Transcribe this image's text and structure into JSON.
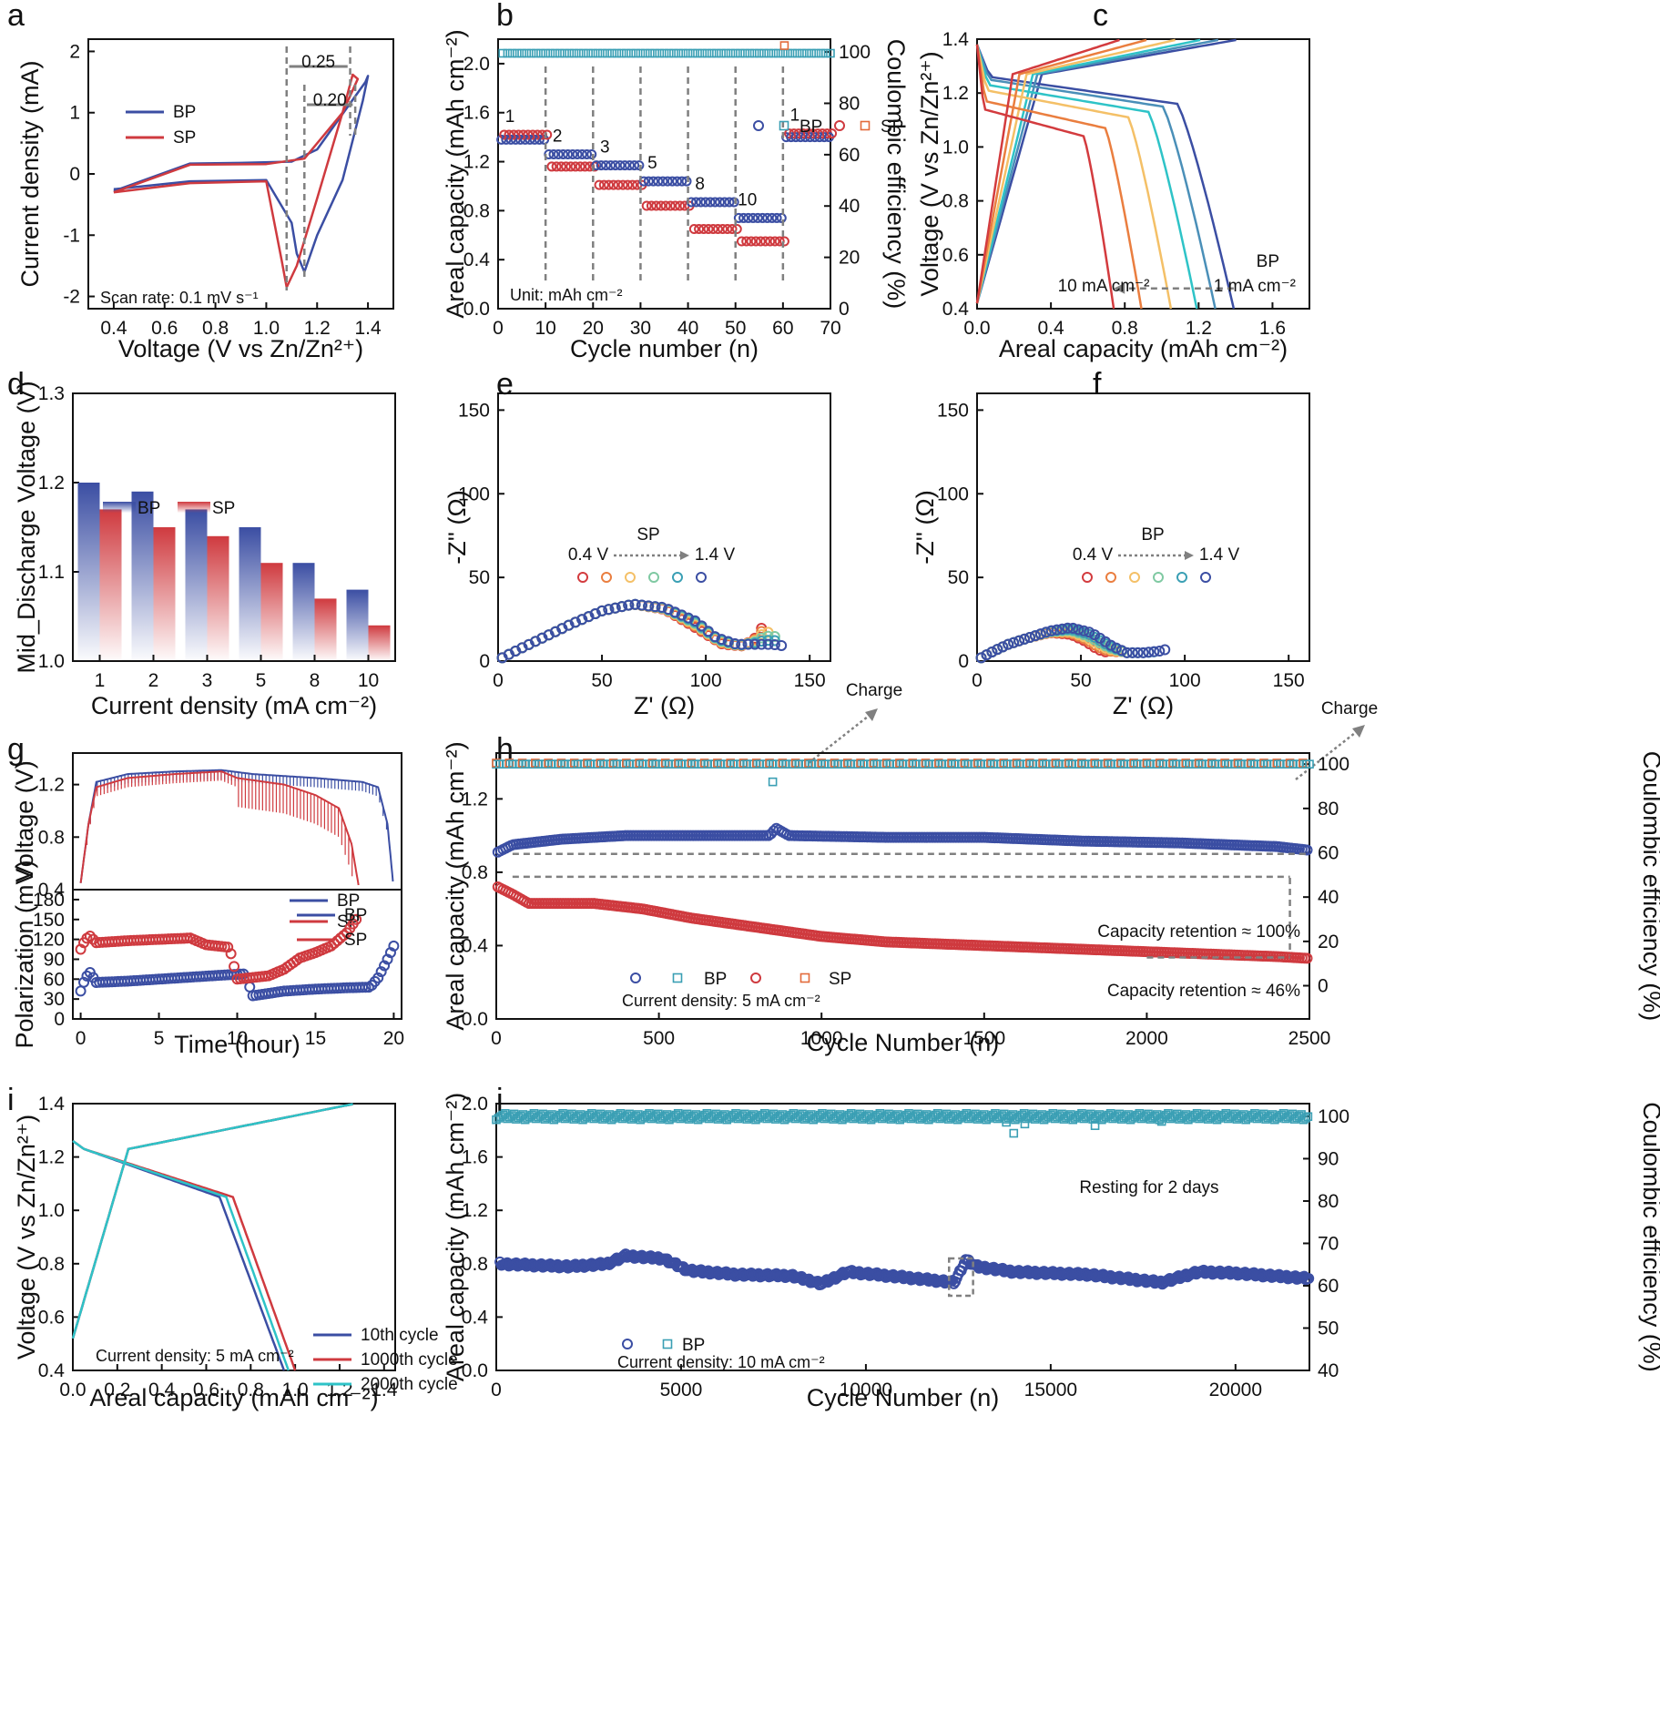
{
  "figure": {
    "colors": {
      "BP": "#3b4ea3",
      "SP": "#cf3a3f",
      "BP_CE": "#3a9fb4",
      "SP_CE": "#e36a3a",
      "guide": "#808080"
    }
  },
  "chart_data": [
    {
      "id": "a",
      "panel": "a",
      "type": "line",
      "xlabel": "Voltage (V vs Zn/Zn²⁺)",
      "ylabel": "Current density (mA)",
      "xlim": [
        0.3,
        1.5
      ],
      "ylim": [
        -2.2,
        2.2
      ],
      "xticks": [
        0.4,
        0.6,
        0.8,
        1.0,
        1.2,
        1.4
      ],
      "yticks": [
        -2,
        -1,
        0,
        1,
        2
      ],
      "legend": [
        "BP",
        "SP"
      ],
      "legend_position": "top-left",
      "annotations": [
        "0.25",
        "0.20",
        "Scan rate: 0.1 mV s⁻¹"
      ],
      "series": [
        {
          "name": "BP",
          "x": [
            0.4,
            0.7,
            1.0,
            1.1,
            1.12,
            1.15,
            1.2,
            1.3,
            1.38,
            1.4,
            1.39,
            1.2,
            1.1,
            0.9,
            0.7,
            0.4
          ],
          "y": [
            -0.25,
            -0.12,
            -0.1,
            -0.8,
            -1.3,
            -1.6,
            -1.0,
            -0.1,
            1.2,
            1.6,
            1.5,
            0.4,
            0.2,
            0.18,
            0.17,
            -0.28
          ]
        },
        {
          "name": "SP",
          "x": [
            0.4,
            0.7,
            1.0,
            1.06,
            1.08,
            1.12,
            1.2,
            1.3,
            1.34,
            1.36,
            1.3,
            1.15,
            1.0,
            0.7,
            0.4
          ],
          "y": [
            -0.3,
            -0.15,
            -0.12,
            -1.4,
            -1.85,
            -1.5,
            -0.4,
            1.0,
            1.62,
            1.55,
            1.0,
            0.25,
            0.16,
            0.15,
            -0.3
          ]
        }
      ]
    },
    {
      "id": "b",
      "panel": "b",
      "type": "scatter",
      "xlabel": "Cycle number (n)",
      "ylabel": "Areal capacity (mAh cm⁻²)",
      "ylabel_right": "Coulombic efficiency (%)",
      "xlim": [
        0,
        70
      ],
      "ylim": [
        0,
        2.2
      ],
      "ylim_right": [
        0,
        105
      ],
      "xticks": [
        0,
        10,
        20,
        30,
        40,
        50,
        60,
        70
      ],
      "yticks": [
        0.0,
        0.4,
        0.8,
        1.2,
        1.6,
        2.0
      ],
      "yticks_right": [
        0,
        20,
        40,
        60,
        80,
        100
      ],
      "legend": [
        "BP",
        "SP"
      ],
      "legend_position": "top-right",
      "annotations": [
        "Unit: mAh cm⁻²"
      ],
      "segment_labels": [
        "1",
        "2",
        "3",
        "5",
        "8",
        "10",
        "1"
      ],
      "segments": [
        {
          "label": "1",
          "range": [
            1,
            10
          ],
          "BP": 1.38,
          "SP": 1.42
        },
        {
          "label": "2",
          "range": [
            11,
            20
          ],
          "BP": 1.26,
          "SP": 1.16
        },
        {
          "label": "3",
          "range": [
            21,
            30
          ],
          "BP": 1.17,
          "SP": 1.01
        },
        {
          "label": "5",
          "range": [
            31,
            40
          ],
          "BP": 1.04,
          "SP": 0.84
        },
        {
          "label": "8",
          "range": [
            41,
            50
          ],
          "BP": 0.87,
          "SP": 0.65
        },
        {
          "label": "10",
          "range": [
            51,
            60
          ],
          "BP": 0.74,
          "SP": 0.55
        },
        {
          "label": "1",
          "range": [
            61,
            70
          ],
          "BP": 1.4,
          "SP": 1.43
        }
      ],
      "coulombic_efficiency": {
        "BP": 99.5,
        "SP": 100.2
      }
    },
    {
      "id": "c",
      "panel": "c",
      "type": "line",
      "xlabel": "Areal capacity (mAh cm⁻²)",
      "ylabel": "Voltage (V vs Zn/Zn²⁺)",
      "xlim": [
        0,
        1.8
      ],
      "ylim": [
        0.4,
        1.4
      ],
      "xticks": [
        0.0,
        0.4,
        0.8,
        1.2,
        1.6
      ],
      "yticks": [
        0.4,
        0.6,
        0.8,
        1.0,
        1.2,
        1.4
      ],
      "annotations": [
        "BP",
        "1 mA cm⁻²",
        "10 mA cm⁻²"
      ],
      "curves": [
        {
          "current": 1,
          "capacity": 1.39,
          "plateau": 1.2,
          "color": "#3b4ea3"
        },
        {
          "current": 2,
          "capacity": 1.29,
          "plateau": 1.19,
          "color": "#4a8fb8"
        },
        {
          "current": 3,
          "capacity": 1.19,
          "plateau": 1.17,
          "color": "#2ec3c7"
        },
        {
          "current": 5,
          "capacity": 1.05,
          "plateau": 1.15,
          "color": "#f4c067"
        },
        {
          "current": 8,
          "capacity": 0.89,
          "plateau": 1.11,
          "color": "#ea7e3f"
        },
        {
          "current": 10,
          "capacity": 0.74,
          "plateau": 1.08,
          "color": "#d33b3e"
        }
      ]
    },
    {
      "id": "d",
      "panel": "d",
      "type": "bar",
      "xlabel": "Current density (mA cm⁻²)",
      "ylabel": "Mid_Discharge Voltage (V)",
      "ylim": [
        1.0,
        1.3
      ],
      "yticks": [
        1.0,
        1.1,
        1.2,
        1.3
      ],
      "categories": [
        "1",
        "2",
        "3",
        "5",
        "8",
        "10"
      ],
      "legend_position": "top-left",
      "series": [
        {
          "name": "BP",
          "values": [
            1.2,
            1.19,
            1.17,
            1.15,
            1.11,
            1.08
          ]
        },
        {
          "name": "SP",
          "values": [
            1.17,
            1.15,
            1.14,
            1.11,
            1.07,
            1.04
          ]
        }
      ]
    },
    {
      "id": "e",
      "panel": "e",
      "type": "scatter",
      "xlabel": "Z' (Ω)",
      "ylabel": "-Z'' (Ω)",
      "xlim": [
        0,
        160
      ],
      "ylim": [
        0,
        160
      ],
      "xticks": [
        0,
        50,
        100,
        150
      ],
      "yticks": [
        0,
        50,
        100,
        150
      ],
      "annotations": [
        "SP",
        "0.4 V",
        "1.4 V",
        "Charge"
      ],
      "state_colors": [
        "#d33b3e",
        "#ea7e3f",
        "#f4c067",
        "#7fc9a2",
        "#3a9fb4",
        "#3b4ea3"
      ],
      "series": [
        {
          "name": "0.4 V",
          "x": [
            2,
            10,
            20,
            35,
            50,
            65,
            80,
            95,
            108,
            118,
            124,
            128
          ],
          "y": [
            2,
            7,
            13,
            22,
            30,
            34,
            31,
            20,
            10,
            9,
            14,
            22
          ]
        },
        {
          "name": "1.4 V",
          "x": [
            2,
            10,
            20,
            35,
            50,
            65,
            80,
            95,
            105,
            115,
            125,
            132,
            138
          ],
          "y": [
            2,
            7,
            13,
            22,
            30,
            34,
            32,
            24,
            14,
            10,
            10,
            10,
            9
          ]
        }
      ]
    },
    {
      "id": "f",
      "panel": "f",
      "type": "scatter",
      "xlabel": "Z' (Ω)",
      "ylabel": "-Z'' (Ω)",
      "xlim": [
        0,
        160
      ],
      "ylim": [
        0,
        160
      ],
      "xticks": [
        0,
        50,
        100,
        150
      ],
      "yticks": [
        0,
        50,
        100,
        150
      ],
      "annotations": [
        "BP",
        "0.4 V",
        "1.4 V",
        "Charge"
      ],
      "state_colors": [
        "#d33b3e",
        "#ea7e3f",
        "#f4c067",
        "#7fc9a2",
        "#3a9fb4",
        "#3b4ea3"
      ],
      "series": [
        {
          "name": "0.4 V",
          "x": [
            2,
            8,
            15,
            25,
            35,
            45,
            52,
            58,
            63
          ],
          "y": [
            2,
            6,
            10,
            14,
            17,
            16,
            12,
            7,
            5
          ]
        },
        {
          "name": "1.4 V",
          "x": [
            2,
            8,
            15,
            25,
            35,
            45,
            55,
            65,
            72,
            80,
            88,
            91
          ],
          "y": [
            2,
            6,
            10,
            14,
            18,
            20,
            17,
            9,
            5,
            5,
            6,
            7
          ]
        }
      ]
    },
    {
      "id": "g1",
      "panel": "g",
      "type": "line",
      "ylabel": "Voltage (V)",
      "xlim": [
        -0.5,
        20.5
      ],
      "ylim": [
        0.4,
        1.44
      ],
      "yticks": [
        0.4,
        0.8,
        1.2
      ],
      "legend": [
        "BP",
        "SP"
      ],
      "legend_position": "center-right",
      "series": [
        {
          "name": "BP",
          "x": [
            0,
            0.5,
            1,
            3,
            6,
            9,
            11,
            15,
            18,
            19.0,
            19.6,
            20
          ],
          "y": [
            0.45,
            0.9,
            1.22,
            1.28,
            1.3,
            1.31,
            1.28,
            1.25,
            1.22,
            1.18,
            0.9,
            0.4
          ]
        },
        {
          "name": "SP",
          "x": [
            0,
            0.5,
            1,
            3,
            6,
            9,
            10,
            13,
            15,
            16.5,
            17.3,
            17.8
          ],
          "y": [
            0.45,
            0.9,
            1.18,
            1.25,
            1.28,
            1.3,
            1.25,
            1.2,
            1.12,
            1.02,
            0.75,
            0.4
          ]
        }
      ]
    },
    {
      "id": "g2",
      "panel": "g",
      "type": "scatter",
      "xlabel": "Time (hour)",
      "ylabel": "Polarization (mV)",
      "xlim": [
        -0.5,
        20.5
      ],
      "ylim": [
        0,
        195
      ],
      "xticks": [
        0,
        5,
        10,
        15,
        20
      ],
      "yticks": [
        0,
        30,
        60,
        90,
        120,
        150,
        180
      ],
      "legend": [
        "BP",
        "SP"
      ],
      "legend_position": "top-right",
      "series": [
        {
          "name": "BP",
          "x": [
            0,
            0.3,
            0.6,
            1,
            3,
            5,
            7,
            9,
            10.5,
            11,
            13,
            15,
            17,
            18.5,
            19,
            19.5,
            20
          ],
          "y": [
            42,
            62,
            70,
            55,
            57,
            60,
            63,
            66,
            68,
            35,
            42,
            45,
            47,
            48,
            62,
            85,
            110
          ]
        },
        {
          "name": "SP",
          "x": [
            0,
            0.3,
            0.6,
            1,
            3,
            5,
            7,
            8,
            9.5,
            10,
            12,
            13,
            14,
            15,
            16,
            17,
            17.6
          ],
          "y": [
            105,
            120,
            125,
            115,
            118,
            120,
            122,
            112,
            108,
            60,
            65,
            75,
            92,
            100,
            110,
            130,
            150
          ]
        }
      ]
    },
    {
      "id": "h",
      "panel": "h",
      "type": "scatter",
      "xlabel": "Cycle Number (n)",
      "ylabel": "Areal capacity (mAh cm⁻²)",
      "ylabel_right": "Coulombic efficiency (%)",
      "xlim": [
        0,
        2500
      ],
      "ylim": [
        0,
        1.45
      ],
      "ylim_right": [
        -15,
        105
      ],
      "xticks": [
        0,
        500,
        1000,
        1500,
        2000,
        2500
      ],
      "yticks": [
        0.0,
        0.4,
        0.8,
        1.2
      ],
      "yticks_right": [
        0,
        20,
        40,
        60,
        80,
        100
      ],
      "legend": [
        "BP",
        "BP",
        "SP",
        "SP"
      ],
      "legend_position": "bottom-left",
      "annotations": [
        "Capacity retention ≈ 100%",
        "Capacity retention ≈ 46%",
        "Current density: 5 mA cm⁻²"
      ],
      "series": [
        {
          "name": "BP",
          "x": [
            5,
            50,
            200,
            400,
            600,
            840,
            860,
            900,
            1200,
            1500,
            1800,
            2100,
            2400,
            2500
          ],
          "y": [
            0.91,
            0.95,
            0.98,
            1.0,
            1.0,
            1.0,
            1.04,
            1.0,
            0.99,
            0.99,
            0.97,
            0.96,
            0.94,
            0.92
          ]
        },
        {
          "name": "SP",
          "x": [
            5,
            50,
            100,
            300,
            450,
            600,
            800,
            1000,
            1200,
            1500,
            1800,
            2100,
            2400,
            2500
          ],
          "y": [
            0.72,
            0.68,
            0.63,
            0.63,
            0.6,
            0.55,
            0.5,
            0.45,
            0.42,
            0.4,
            0.38,
            0.36,
            0.34,
            0.33
          ]
        },
        {
          "name": "BP CE",
          "x": [
            0,
            2500
          ],
          "y": [
            100,
            100
          ]
        },
        {
          "name": "SP CE",
          "x": [
            0,
            2500
          ],
          "y": [
            100.5,
            100.5
          ]
        }
      ]
    },
    {
      "id": "i",
      "panel": "i",
      "type": "line",
      "xlabel": "Areal capacity (mAh cm⁻²)",
      "ylabel": "Voltage (V vs Zn/Zn²⁺)",
      "xlim": [
        0,
        1.45
      ],
      "ylim": [
        0.4,
        1.4
      ],
      "xticks": [
        0.0,
        0.2,
        0.4,
        0.6,
        0.8,
        1.0,
        1.2,
        1.4
      ],
      "yticks": [
        0.4,
        0.6,
        0.8,
        1.0,
        1.2,
        1.4
      ],
      "legend": [
        "10th cycle",
        "1000th cycle",
        "2000th cycle"
      ],
      "legend_position": "center-right",
      "annotations": [
        "Current density: 5 mA cm⁻²"
      ],
      "series": [
        {
          "name": "10th cycle",
          "capacity": 0.95,
          "plateau_end": 0.66,
          "color": "#3b4ea3"
        },
        {
          "name": "1000th cycle",
          "capacity": 1.0,
          "plateau_end": 0.72,
          "color": "#cf3a3f"
        },
        {
          "name": "2000th cycle",
          "capacity": 0.97,
          "plateau_end": 0.69,
          "color": "#2ec3c7"
        }
      ]
    },
    {
      "id": "j",
      "panel": "j",
      "type": "scatter",
      "xlabel": "Cycle Number (n)",
      "ylabel": "Areal capacity (mAh cm⁻²)",
      "ylabel_right": "Coulombic efficiency (%)",
      "xlim": [
        0,
        22000
      ],
      "ylim": [
        0,
        2.0
      ],
      "ylim_right": [
        40,
        103
      ],
      "xticks": [
        0,
        5000,
        10000,
        15000,
        20000
      ],
      "yticks": [
        0.0,
        0.4,
        0.8,
        1.2,
        1.6,
        2.0
      ],
      "yticks_right": [
        40,
        50,
        60,
        70,
        80,
        90,
        100
      ],
      "legend": [
        "BP"
      ],
      "legend_position": "bottom-left",
      "annotations": [
        "Resting for 2 days",
        "Current density: 10 mA cm⁻²"
      ],
      "series": [
        {
          "name": "BP",
          "x": [
            100,
            1000,
            2000,
            3000,
            3500,
            4500,
            5200,
            6500,
            8000,
            8800,
            9500,
            11000,
            12400,
            12700,
            13000,
            14000,
            16000,
            18000,
            19000,
            20000,
            21000,
            22000
          ],
          "y": [
            0.8,
            0.79,
            0.78,
            0.8,
            0.86,
            0.84,
            0.75,
            0.72,
            0.71,
            0.65,
            0.74,
            0.7,
            0.66,
            0.83,
            0.78,
            0.74,
            0.72,
            0.66,
            0.74,
            0.73,
            0.71,
            0.69
          ]
        },
        {
          "name": "BP CE",
          "x": [
            0,
            22000
          ],
          "y": [
            100,
            100
          ]
        }
      ]
    }
  ]
}
